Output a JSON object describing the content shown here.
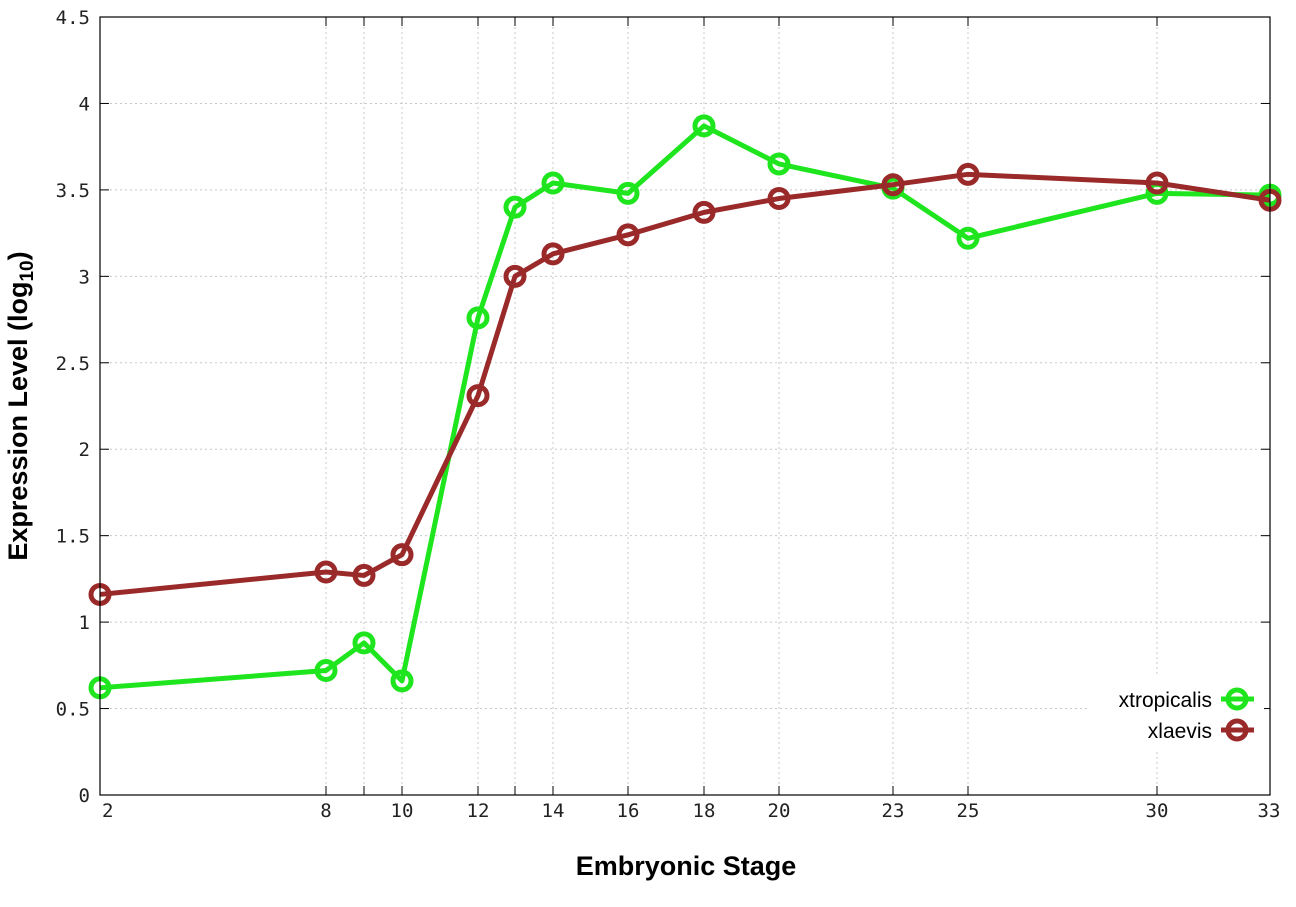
{
  "chart_data": {
    "type": "line",
    "title": "",
    "xlabel": "Embryonic Stage",
    "ylabel_main": "Expression Level (log",
    "ylabel_sub": "10",
    "ylabel_close": ")",
    "xlim": [
      2,
      33
    ],
    "ylim": [
      0,
      4.5
    ],
    "x_ticks": [
      2,
      8,
      10,
      12,
      14,
      16,
      18,
      20,
      23,
      25,
      30,
      33
    ],
    "x_tick_labels": [
      "2",
      "8",
      "10",
      "12",
      "14",
      "16",
      "18",
      "20",
      "23",
      "25",
      "30",
      "33"
    ],
    "x_tick_positions": [
      2,
      8,
      9,
      10,
      12,
      13,
      14,
      16,
      18,
      20,
      23,
      25,
      30,
      33
    ],
    "x_point_positions": [
      2,
      8,
      9,
      10,
      12,
      13,
      14,
      16,
      18,
      20,
      23,
      25,
      30,
      33
    ],
    "y_ticks": [
      0,
      0.5,
      1,
      1.5,
      2,
      2.5,
      3,
      3.5,
      4,
      4.5
    ],
    "y_tick_labels": [
      "0",
      "0.5",
      "1",
      "1.5",
      "2",
      "2.5",
      "3",
      "3.5",
      "4",
      "4.5"
    ],
    "grid": true,
    "legend_position": "bottom-right",
    "series": [
      {
        "name": "xtropicalis",
        "color": "#1ee51e",
        "x": [
          2,
          8,
          9,
          10,
          12,
          13,
          14,
          16,
          18,
          20,
          23,
          25,
          30,
          33
        ],
        "y": [
          0.62,
          0.72,
          0.88,
          0.66,
          2.76,
          3.4,
          3.54,
          3.48,
          3.87,
          3.65,
          3.51,
          3.22,
          3.48,
          3.47
        ]
      },
      {
        "name": "xlaevis",
        "color": "#9a2a2a",
        "x": [
          2,
          8,
          9,
          10,
          12,
          13,
          14,
          16,
          18,
          20,
          23,
          25,
          30,
          33
        ],
        "y": [
          1.16,
          1.29,
          1.27,
          1.39,
          2.31,
          3.0,
          3.13,
          3.24,
          3.37,
          3.45,
          3.53,
          3.59,
          3.54,
          3.44
        ]
      }
    ]
  }
}
